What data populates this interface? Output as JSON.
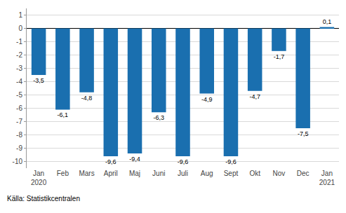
{
  "chart_data": {
    "type": "bar",
    "categories": [
      "Jan\n2020",
      "Feb",
      "Mars",
      "April",
      "Maj",
      "Juni",
      "Juli",
      "Aug",
      "Sept",
      "Okt",
      "Nov",
      "Dec",
      "Jan\n2021"
    ],
    "values": [
      -3.5,
      -6.1,
      -4.8,
      -9.6,
      -9.4,
      -6.3,
      -9.6,
      -4.9,
      -9.6,
      -4.7,
      -1.7,
      -7.5,
      0.1
    ],
    "value_labels": [
      "-3,5",
      "-6,1",
      "-4,8",
      "-9,6",
      "-9,4",
      "-6,3",
      "-9,6",
      "-4,9",
      "-9,6",
      "-4,7",
      "-1,7",
      "-7,5",
      "0,1"
    ],
    "data_labels": true,
    "color": "#1a6faf",
    "ylim": [
      -10.5,
      1.5
    ],
    "yticks": [
      1,
      0,
      -1,
      -2,
      -3,
      -4,
      -5,
      -6,
      -7,
      -8,
      -9,
      -10
    ],
    "grid": true,
    "annotations": [
      "Källa: Statistikcentralen"
    ]
  }
}
